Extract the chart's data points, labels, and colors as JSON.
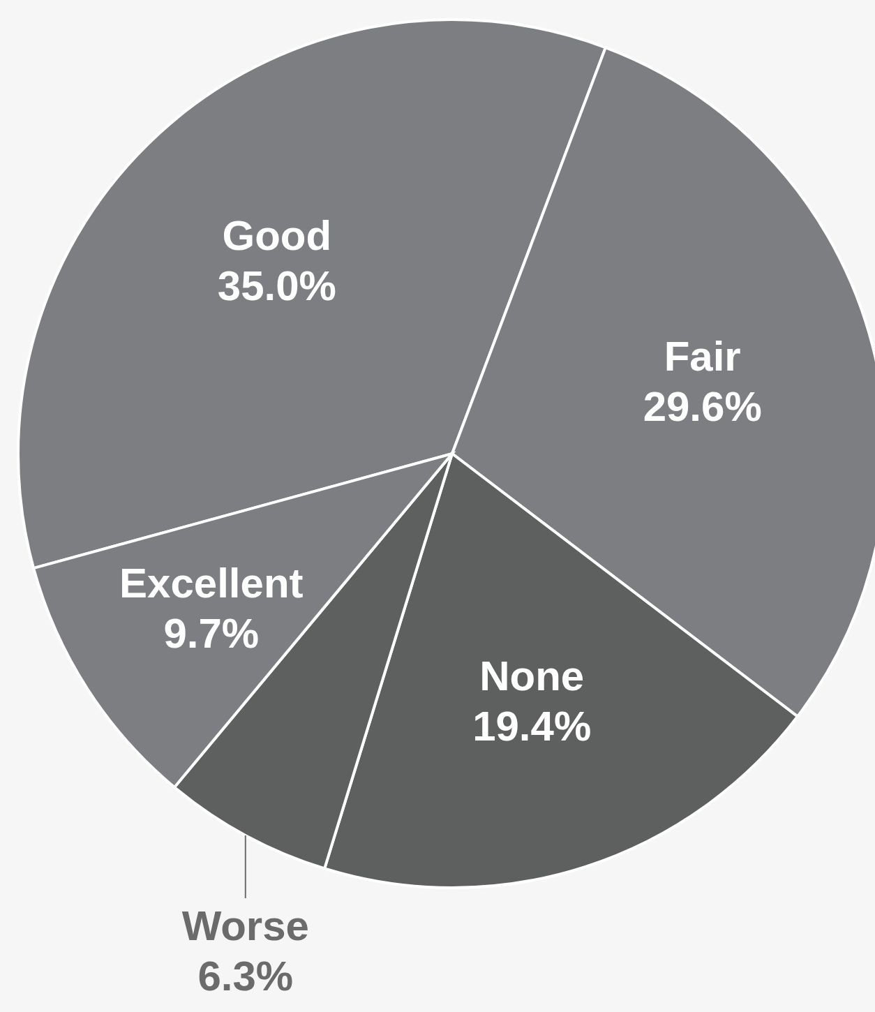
{
  "chart_data": {
    "type": "pie",
    "categories": [
      "Good",
      "Fair",
      "None",
      "Worse",
      "Excellent"
    ],
    "values": [
      35.0,
      29.6,
      19.4,
      6.3,
      9.7
    ],
    "value_labels": [
      "35.0%",
      "29.6%",
      "19.4%",
      "6.3%",
      "9.7%"
    ],
    "colors": [
      "#7d7e82",
      "#7d7e82",
      "#5e605f",
      "#5e605f",
      "#7d7e82"
    ]
  }
}
